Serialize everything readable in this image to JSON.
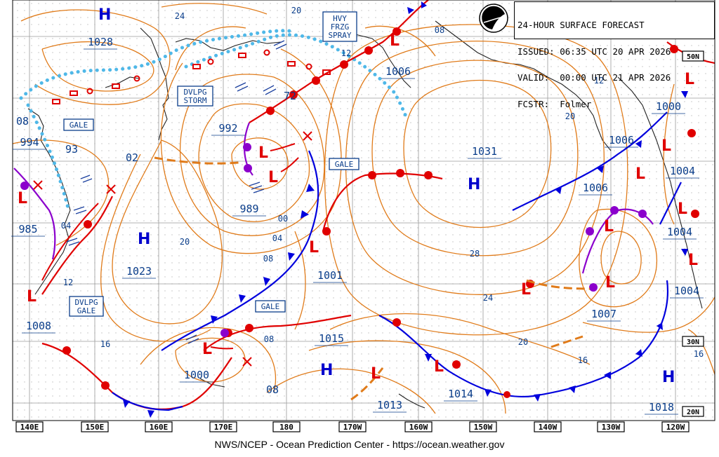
{
  "header": {
    "line1": "24-HOUR SURFACE FORECAST",
    "line2": "ISSUED: 06:35 UTC 20 APR 2026",
    "line3": "VALID:  00:00 UTC 21 APR 2026",
    "line4": "FCSTR:  Folmer"
  },
  "logo_icon": "noaa-logo",
  "credit": "NWS/NCEP - Ocean Prediction Center - https://ocean.weather.gov",
  "longitude_labels": [
    "140E",
    "150E",
    "160E",
    "170E",
    "180",
    "170W",
    "160W",
    "150W",
    "140W",
    "130W",
    "120W"
  ],
  "latitude_labels": [
    "50N",
    "30N",
    "20N"
  ],
  "pressure_values": [
    "1028",
    "994",
    "985",
    "1008",
    "1023",
    "992",
    "989",
    "1000",
    "1001",
    "1015",
    "1031",
    "1013",
    "1014",
    "1006",
    "1006",
    "1000",
    "1006",
    "1004",
    "1004",
    "1004",
    "1007",
    "1018"
  ],
  "isobar_labels": [
    "24",
    "20",
    "08",
    "93",
    "02",
    "04",
    "12",
    "20",
    "16",
    "72",
    "00",
    "04",
    "08",
    "08",
    "08",
    "12",
    "08",
    "12",
    "20",
    "28",
    "24",
    "20",
    "16",
    "16"
  ],
  "warnings": [
    "GALE",
    "GALE",
    "GALE",
    "DVLPG GALE",
    "DVLPG STORM",
    "HVY FRZG SPRAY"
  ],
  "colors": {
    "isobar": "#e07b1a",
    "warm_front": "#e00000",
    "cold_front": "#0000dd",
    "occluded": "#8b00cc",
    "ice_edge": "#4fb8e8",
    "label_blue": "#0a3d8a",
    "grid": "#b0b0b0",
    "land": "#222222"
  }
}
